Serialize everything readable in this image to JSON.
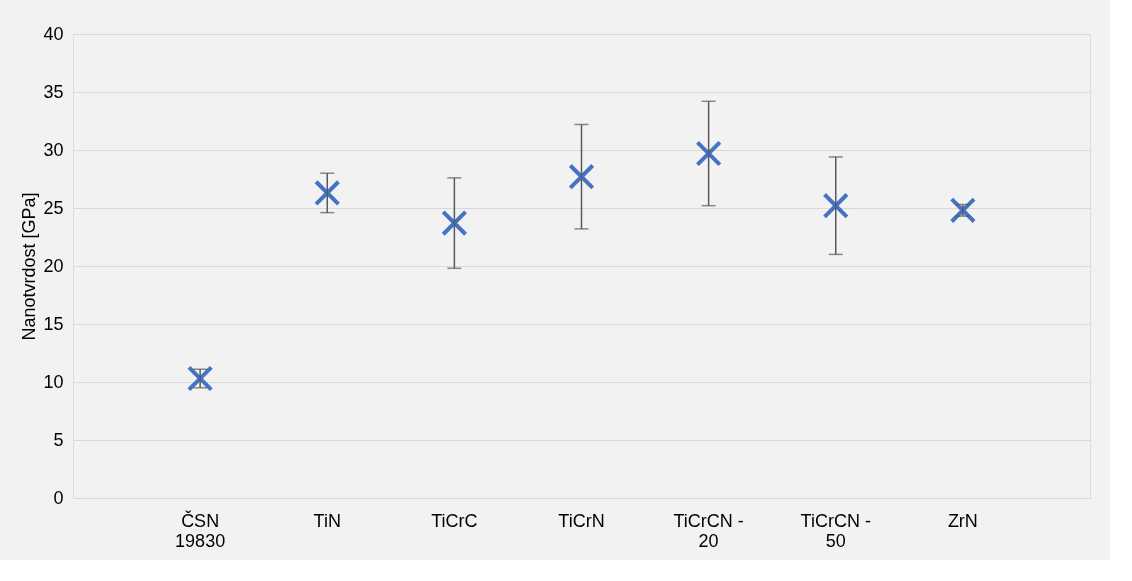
{
  "chart_data": {
    "type": "scatter",
    "ylabel": "Nanotvrdost [GPa]",
    "categories": [
      "ČSN 19830",
      "TiN",
      "TiCrC",
      "TiCrN",
      "TiCrCN - 20",
      "TiCrCN - 50",
      "ZrN"
    ],
    "series": [
      {
        "color": "#4472c4",
        "values": [
          10.3,
          26.3,
          23.7,
          27.7,
          29.7,
          25.2,
          24.8
        ],
        "errors": [
          0.8,
          1.7,
          3.9,
          4.5,
          4.5,
          4.2,
          0.5
        ]
      }
    ],
    "ylim": [
      0,
      40
    ],
    "yticks": [
      0,
      5,
      10,
      15,
      20,
      25,
      30,
      35,
      40
    ],
    "grid": "y",
    "marker": "cross"
  }
}
